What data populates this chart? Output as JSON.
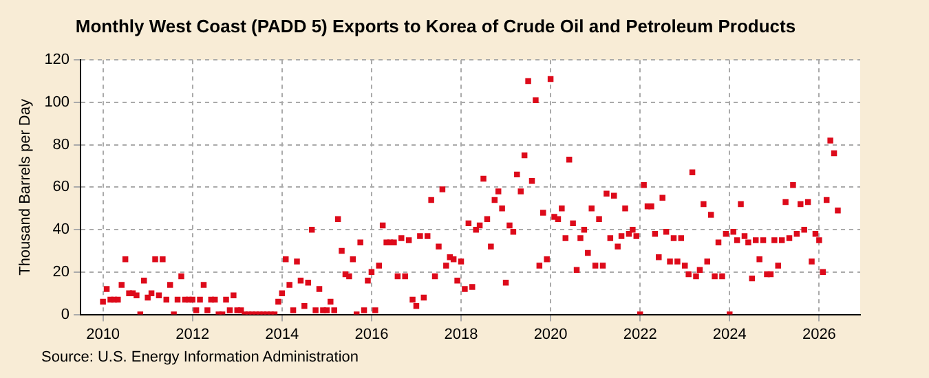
{
  "chart_data": {
    "type": "scatter",
    "title": "Monthly West Coast (PADD 5) Exports to Korea of Crude Oil and Petroleum Products",
    "ylabel": "Thousand Barrels per Day",
    "annotations": [
      "Source: U.S. Energy Information Administration"
    ],
    "x": [
      "2010-01",
      "2010-02",
      "2010-03",
      "2010-04",
      "2010-05",
      "2010-06",
      "2010-07",
      "2010-08",
      "2010-09",
      "2010-10",
      "2010-11",
      "2010-12",
      "2011-01",
      "2011-02",
      "2011-03",
      "2011-04",
      "2011-05",
      "2011-06",
      "2011-07",
      "2011-08",
      "2011-09",
      "2011-10",
      "2011-11",
      "2011-12",
      "2012-01",
      "2012-02",
      "2012-03",
      "2012-04",
      "2012-05",
      "2012-06",
      "2012-07",
      "2012-08",
      "2012-09",
      "2012-10",
      "2012-11",
      "2012-12",
      "2013-01",
      "2013-02",
      "2013-03",
      "2013-04",
      "2013-05",
      "2013-06",
      "2013-07",
      "2013-08",
      "2013-09",
      "2013-10",
      "2013-11",
      "2013-12",
      "2014-01",
      "2014-02",
      "2014-03",
      "2014-04",
      "2014-05",
      "2014-06",
      "2014-07",
      "2014-08",
      "2014-09",
      "2014-10",
      "2014-11",
      "2014-12",
      "2015-01",
      "2015-02",
      "2015-03",
      "2015-04",
      "2015-05",
      "2015-06",
      "2015-07",
      "2015-08",
      "2015-09",
      "2015-10",
      "2015-11",
      "2015-12",
      "2016-01",
      "2016-02",
      "2016-03",
      "2016-04",
      "2016-05",
      "2016-06",
      "2016-07",
      "2016-08",
      "2016-09",
      "2016-10",
      "2016-11",
      "2016-12",
      "2017-01",
      "2017-02",
      "2017-03",
      "2017-04",
      "2017-05",
      "2017-06",
      "2017-07",
      "2017-08",
      "2017-09",
      "2017-10",
      "2017-11",
      "2017-12",
      "2018-01",
      "2018-02",
      "2018-03",
      "2018-04",
      "2018-05",
      "2018-06",
      "2018-07",
      "2018-08",
      "2018-09",
      "2018-10",
      "2018-11",
      "2018-12",
      "2019-01",
      "2019-02",
      "2019-03",
      "2019-04",
      "2019-05",
      "2019-06",
      "2019-07",
      "2019-08",
      "2019-09",
      "2019-10",
      "2019-11",
      "2019-12",
      "2020-01",
      "2020-02",
      "2020-03",
      "2020-04",
      "2020-05",
      "2020-06",
      "2020-07",
      "2020-08",
      "2020-09",
      "2020-10",
      "2020-11",
      "2020-12",
      "2021-01",
      "2021-02",
      "2021-03",
      "2021-04",
      "2021-05",
      "2021-06",
      "2021-07",
      "2021-08",
      "2021-09",
      "2021-10",
      "2021-11",
      "2021-12",
      "2022-01",
      "2022-02",
      "2022-03",
      "2022-04",
      "2022-05",
      "2022-06",
      "2022-07",
      "2022-08",
      "2022-09",
      "2022-10",
      "2022-11",
      "2022-12",
      "2023-01",
      "2023-02",
      "2023-03",
      "2023-04",
      "2023-05",
      "2023-06",
      "2023-07",
      "2023-08",
      "2023-09",
      "2023-10",
      "2023-11",
      "2023-12",
      "2024-01",
      "2024-02",
      "2024-03",
      "2024-04",
      "2024-05",
      "2024-06",
      "2024-07",
      "2024-08",
      "2024-09",
      "2024-10",
      "2024-11",
      "2024-12",
      "2025-01",
      "2025-02",
      "2025-03",
      "2025-04",
      "2025-05",
      "2025-06",
      "2025-07",
      "2025-08",
      "2025-09",
      "2025-10",
      "2025-11",
      "2025-12",
      "2026-01",
      "2026-02",
      "2026-03",
      "2026-04",
      "2026-05",
      "2026-06"
    ],
    "values": [
      6,
      12,
      7,
      7,
      7,
      14,
      26,
      10,
      10,
      9,
      0,
      16,
      8,
      10,
      26,
      9,
      26,
      7,
      14,
      0,
      7,
      18,
      7,
      7,
      7,
      2,
      7,
      14,
      2,
      7,
      7,
      0,
      0,
      7,
      2,
      9,
      2,
      2,
      0,
      0,
      0,
      0,
      0,
      0,
      0,
      0,
      0,
      6,
      10,
      26,
      14,
      2,
      25,
      16,
      4,
      15,
      40,
      2,
      12,
      2,
      2,
      6,
      2,
      45,
      30,
      19,
      18,
      26,
      0,
      34,
      2,
      16,
      20,
      2,
      23,
      42,
      34,
      34,
      34,
      18,
      36,
      18,
      35,
      7,
      4,
      37,
      8,
      37,
      54,
      18,
      32,
      59,
      23,
      27,
      26,
      16,
      25,
      12,
      43,
      13,
      40,
      42,
      64,
      45,
      32,
      54,
      58,
      50,
      15,
      42,
      39,
      66,
      58,
      75,
      110,
      63,
      101,
      23,
      48,
      26,
      111,
      46,
      45,
      50,
      36,
      73,
      43,
      21,
      36,
      40,
      29,
      50,
      23,
      45,
      23,
      57,
      36,
      56,
      32,
      37,
      50,
      38,
      40,
      37,
      0,
      61,
      51,
      51,
      38,
      27,
      55,
      39,
      25,
      36,
      25,
      36,
      23,
      19,
      67,
      18,
      21,
      52,
      25,
      47,
      18,
      34,
      18,
      38,
      0,
      39,
      35,
      52,
      37,
      34,
      17,
      35,
      26,
      35,
      19,
      19,
      35,
      23,
      35,
      53,
      36,
      61,
      38,
      52,
      40,
      53,
      25,
      38,
      35,
      20,
      54,
      82,
      76,
      49
    ],
    "color": "#dd0a1a",
    "marker": "square",
    "grid": true,
    "xlim": [
      "2009-07",
      "2026-12"
    ],
    "xticks": [
      "2010",
      "2012",
      "2014",
      "2016",
      "2018",
      "2020",
      "2022",
      "2024",
      "2026"
    ],
    "ylim": [
      0,
      120
    ],
    "yticks": [
      0,
      20,
      40,
      60,
      80,
      100,
      120
    ]
  }
}
